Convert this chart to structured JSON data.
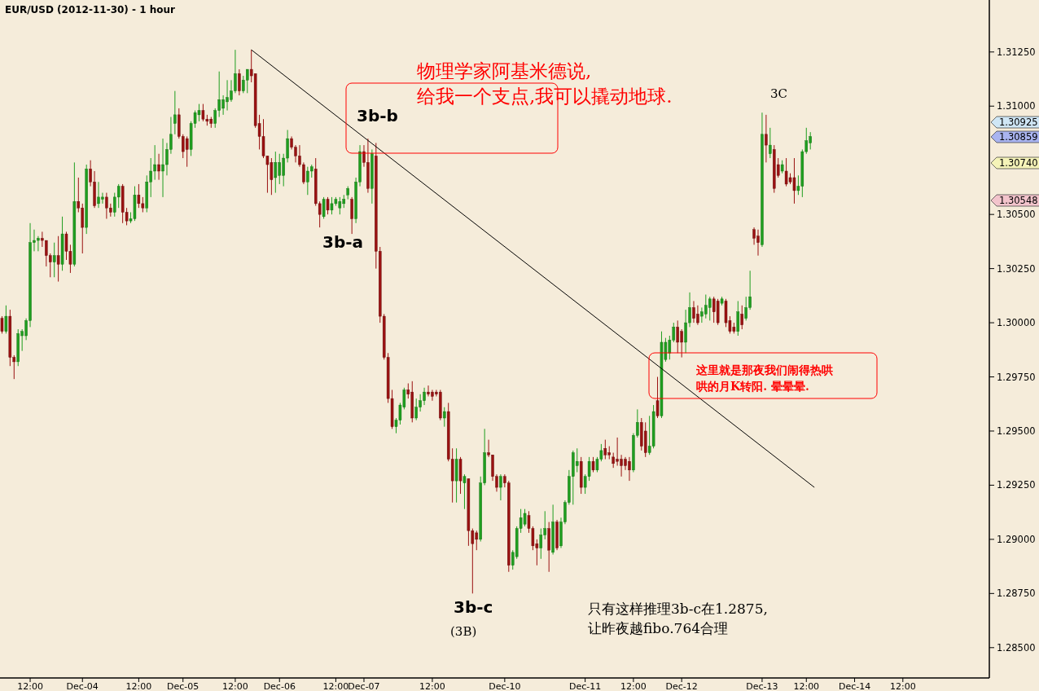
{
  "chart_data": {
    "type": "candlestick",
    "title": "EUR/USD (2012-11-30) - 1 hour",
    "categories": [
      null,
      null,
      null,
      null,
      null,
      null,
      null,
      "12:00",
      null,
      null,
      null,
      null,
      null,
      null,
      null,
      null,
      null,
      null,
      null,
      null,
      "Dec-04",
      null,
      null,
      null,
      null,
      null,
      null,
      null,
      null,
      null,
      null,
      null,
      null,
      null,
      "12:00",
      null,
      null,
      null,
      null,
      null,
      null,
      null,
      null,
      null,
      null,
      "Dec-05",
      null,
      null,
      null,
      null,
      null,
      null,
      null,
      null,
      null,
      null,
      null,
      null,
      "12:00",
      null,
      null,
      null,
      null,
      null,
      null,
      null,
      null,
      null,
      null,
      "Dec-06",
      null,
      null,
      null,
      null,
      null,
      null,
      null,
      null,
      null,
      null,
      null,
      null,
      null,
      "12:00",
      null,
      null,
      null,
      null,
      null,
      null,
      "Dec-07",
      null,
      null,
      null,
      null,
      null,
      null,
      null,
      null,
      null,
      null,
      null,
      null,
      null,
      null,
      null,
      null,
      "12:00",
      null,
      null,
      null,
      null,
      null,
      null,
      null,
      null,
      null,
      null,
      null,
      null,
      null,
      null,
      null,
      null,
      null,
      "Dec-10",
      null,
      null,
      null,
      null,
      null,
      null,
      null,
      null,
      null,
      null,
      null,
      null,
      null,
      null,
      null,
      null,
      null,
      null,
      null,
      "Dec-11",
      null,
      null,
      null,
      null,
      null,
      null,
      null,
      null,
      null,
      null,
      null,
      "12:00",
      null,
      null,
      null,
      null,
      null,
      null,
      null,
      null,
      null,
      null,
      null,
      "Dec-12",
      null,
      null,
      null,
      null,
      null,
      null,
      null,
      null,
      null,
      null,
      null,
      null,
      null,
      null,
      null,
      null,
      null,
      null,
      null,
      "Dec-13",
      null,
      null,
      null,
      null,
      null,
      null,
      null,
      null,
      null,
      null,
      "12:00",
      null,
      null,
      null,
      null,
      null,
      null,
      null,
      null,
      null,
      null,
      null,
      "Dec-14",
      null,
      null,
      null,
      null,
      null,
      null,
      null,
      null,
      null,
      null,
      null,
      "12:00",
      null,
      null,
      null,
      null,
      null,
      null,
      null,
      null,
      null,
      null,
      null,
      null,
      null,
      null,
      null,
      null,
      null,
      null,
      null,
      null,
      null
    ],
    "ohlc": [
      [
        1.3002,
        1.3003,
        1.2995,
        1.2996
      ],
      [
        1.2996,
        1.3008,
        1.2995,
        1.3003
      ],
      [
        1.3003,
        1.3006,
        1.298,
        1.2984
      ],
      [
        1.2984,
        1.2985,
        1.2974,
        1.2982
      ],
      [
        1.2982,
        1.2997,
        1.298,
        1.2995
      ],
      [
        1.2994,
        1.2997,
        1.2987,
        1.2996
      ],
      [
        1.2994,
        1.3002,
        1.2992,
        1.3001
      ],
      [
        1.3001,
        1.3046,
        1.2998,
        1.3037
      ],
      [
        1.3037,
        1.3043,
        1.3033,
        1.3038
      ],
      [
        1.3038,
        1.304,
        1.3033,
        1.3039
      ],
      [
        1.3039,
        1.3042,
        1.3035,
        1.3038
      ],
      [
        1.3038,
        1.3038,
        1.3026,
        1.3031
      ],
      [
        1.3031,
        1.3032,
        1.3021,
        1.3028
      ],
      [
        1.3028,
        1.3037,
        1.3021,
        1.3031
      ],
      [
        1.3031,
        1.304,
        1.3019,
        1.3027
      ],
      [
        1.3027,
        1.3049,
        1.3024,
        1.3041
      ],
      [
        1.3041,
        1.3042,
        1.3029,
        1.3033
      ],
      [
        1.3033,
        1.3036,
        1.3023,
        1.3027
      ],
      [
        1.3027,
        1.3074,
        1.3026,
        1.3056
      ],
      [
        1.3056,
        1.3067,
        1.3051,
        1.3053
      ],
      [
        1.3053,
        1.3055,
        1.3032,
        1.3044
      ],
      [
        1.3044,
        1.3073,
        1.3041,
        1.3071
      ],
      [
        1.3071,
        1.3075,
        1.3063,
        1.3065
      ],
      [
        1.3065,
        1.307,
        1.3053,
        1.3054
      ],
      [
        1.3055,
        1.3065,
        1.3053,
        1.3058
      ],
      [
        1.3057,
        1.306,
        1.3055,
        1.3058
      ],
      [
        1.3058,
        1.306,
        1.3048,
        1.3053
      ],
      [
        1.3053,
        1.3055,
        1.3049,
        1.3051
      ],
      [
        1.3051,
        1.306,
        1.3049,
        1.3058
      ],
      [
        1.3058,
        1.3064,
        1.3053,
        1.3063
      ],
      [
        1.3063,
        1.3064,
        1.3046,
        1.3051
      ],
      [
        1.3051,
        1.3053,
        1.3045,
        1.3047
      ],
      [
        1.3047,
        1.3051,
        1.3046,
        1.3048
      ],
      [
        1.3048,
        1.3063,
        1.3047,
        1.3059
      ],
      [
        1.3059,
        1.3064,
        1.3053,
        1.3055
      ],
      [
        1.3055,
        1.3058,
        1.3051,
        1.3053
      ],
      [
        1.3053,
        1.3068,
        1.3051,
        1.3065
      ],
      [
        1.3065,
        1.3076,
        1.3058,
        1.307
      ],
      [
        1.307,
        1.3082,
        1.3066,
        1.3073
      ],
      [
        1.3073,
        1.3078,
        1.3066,
        1.307
      ],
      [
        1.307,
        1.3085,
        1.3058,
        1.3073
      ],
      [
        1.3073,
        1.3083,
        1.3068,
        1.308
      ],
      [
        1.308,
        1.3095,
        1.3078,
        1.3087
      ],
      [
        1.3092,
        1.3107,
        1.3087,
        1.3096
      ],
      [
        1.3096,
        1.3099,
        1.3085,
        1.3086
      ],
      [
        1.3086,
        1.3087,
        1.3076,
        1.3079
      ],
      [
        1.3085,
        1.3086,
        1.3072,
        1.308
      ],
      [
        1.308,
        1.3093,
        1.3077,
        1.3092
      ],
      [
        1.3092,
        1.3098,
        1.309,
        1.3097
      ],
      [
        1.3096,
        1.3101,
        1.3093,
        1.3098
      ],
      [
        1.3098,
        1.3101,
        1.3093,
        1.3094
      ],
      [
        1.3094,
        1.3096,
        1.3091,
        1.3093
      ],
      [
        1.3094,
        1.3095,
        1.309,
        1.3092
      ],
      [
        1.3092,
        1.3099,
        1.309,
        1.3098
      ],
      [
        1.3098,
        1.3116,
        1.3095,
        1.3103
      ],
      [
        1.3099,
        1.3105,
        1.3096,
        1.3103
      ],
      [
        1.3102,
        1.3112,
        1.3098,
        1.3104
      ],
      [
        1.3103,
        1.3112,
        1.3102,
        1.3107
      ],
      [
        1.3107,
        1.3126,
        1.3106,
        1.3115
      ],
      [
        1.3115,
        1.3117,
        1.3105,
        1.3107
      ],
      [
        1.3107,
        1.3114,
        1.3106,
        1.3112
      ],
      [
        1.3112,
        1.3117,
        1.3106,
        1.3117
      ],
      [
        1.3117,
        1.3126,
        1.3111,
        1.3114
      ],
      [
        1.3115,
        1.3115,
        1.309,
        1.3091
      ],
      [
        1.3092,
        1.3096,
        1.308,
        1.3086
      ],
      [
        1.3086,
        1.3094,
        1.3076,
        1.3077
      ],
      [
        1.3077,
        1.3077,
        1.306,
        1.3073
      ],
      [
        1.3074,
        1.3076,
        1.3059,
        1.3066
      ],
      [
        1.3067,
        1.3079,
        1.306,
        1.3074
      ],
      [
        1.3068,
        1.3078,
        1.3064,
        1.3074
      ],
      [
        1.3068,
        1.3078,
        1.3063,
        1.3076
      ],
      [
        1.3076,
        1.3089,
        1.3074,
        1.3085
      ],
      [
        1.3085,
        1.3086,
        1.308,
        1.3081
      ],
      [
        1.3081,
        1.3082,
        1.3074,
        1.3077
      ],
      [
        1.3077,
        1.3082,
        1.3072,
        1.3073
      ],
      [
        1.3073,
        1.3074,
        1.3064,
        1.3065
      ],
      [
        1.3065,
        1.3072,
        1.3059,
        1.307
      ],
      [
        1.307,
        1.3073,
        1.3067,
        1.3072
      ],
      [
        1.3071,
        1.3076,
        1.3054,
        1.3055
      ],
      [
        1.3055,
        1.3056,
        1.3044,
        1.305
      ],
      [
        1.3049,
        1.3058,
        1.3048,
        1.3057
      ],
      [
        1.3057,
        1.3058,
        1.305,
        1.3052
      ],
      [
        1.3052,
        1.3058,
        1.305,
        1.3055
      ],
      [
        1.3055,
        1.3058,
        1.3054,
        1.3057
      ],
      [
        1.3053,
        1.3058,
        1.305,
        1.3056
      ],
      [
        1.3055,
        1.3059,
        1.3053,
        1.3057
      ],
      [
        1.3059,
        1.3063,
        1.3057,
        1.3062
      ],
      [
        1.3057,
        1.3058,
        1.3041,
        1.3048
      ],
      [
        1.3048,
        1.3067,
        1.3046,
        1.3065
      ],
      [
        1.3065,
        1.3082,
        1.3063,
        1.3079
      ],
      [
        1.3079,
        1.3082,
        1.3072,
        1.3074
      ],
      [
        1.3074,
        1.3085,
        1.306,
        1.3062
      ],
      [
        1.3062,
        1.308,
        1.3055,
        1.3078
      ],
      [
        1.3077,
        1.3083,
        1.3025,
        1.3033
      ],
      [
        1.3033,
        1.3035,
        1.3,
        1.3003
      ],
      [
        1.3003,
        1.3004,
        1.2983,
        1.2984
      ],
      [
        1.2984,
        1.2986,
        1.2963,
        1.2965
      ],
      [
        1.2965,
        1.2969,
        1.2951,
        1.2952
      ],
      [
        1.2952,
        1.2956,
        1.2949,
        1.2955
      ],
      [
        1.2955,
        1.2963,
        1.2953,
        1.2962
      ],
      [
        1.2961,
        1.297,
        1.296,
        1.2969
      ],
      [
        1.2969,
        1.2972,
        1.2965,
        1.2967
      ],
      [
        1.2968,
        1.2973,
        1.2954,
        1.2956
      ],
      [
        1.2956,
        1.2965,
        1.2955,
        1.2961
      ],
      [
        1.2961,
        1.2967,
        1.2959,
        1.2964
      ],
      [
        1.2964,
        1.297,
        1.2962,
        1.2968
      ],
      [
        1.2968,
        1.2971,
        1.2966,
        1.2967
      ],
      [
        1.2968,
        1.2969,
        1.2964,
        1.2966
      ],
      [
        1.2968,
        1.2969,
        1.2966,
        1.2967
      ],
      [
        1.2968,
        1.2969,
        1.2955,
        1.2956
      ],
      [
        1.2956,
        1.2961,
        1.2952,
        1.2959
      ],
      [
        1.2959,
        1.2963,
        1.2936,
        1.2937
      ],
      [
        1.2937,
        1.2942,
        1.2917,
        1.2927
      ],
      [
        1.2927,
        1.2942,
        1.2917,
        1.2937
      ],
      [
        1.2937,
        1.2938,
        1.2921,
        1.2927
      ],
      [
        1.2926,
        1.293,
        1.2914,
        1.2929
      ],
      [
        1.2928,
        1.2928,
        1.2897,
        1.2904
      ],
      [
        1.2904,
        1.2905,
        1.2875,
        1.2898
      ],
      [
        1.2903,
        1.2904,
        1.2895,
        1.29
      ],
      [
        1.29,
        1.2929,
        1.2899,
        1.2926
      ],
      [
        1.2926,
        1.2951,
        1.2925,
        1.294
      ],
      [
        1.294,
        1.2946,
        1.2938,
        1.2939
      ],
      [
        1.2939,
        1.2939,
        1.2927,
        1.2929
      ],
      [
        1.2929,
        1.293,
        1.2922,
        1.2924
      ],
      [
        1.2924,
        1.293,
        1.2918,
        1.2929
      ],
      [
        1.2929,
        1.293,
        1.2924,
        1.2926
      ],
      [
        1.2926,
        1.2927,
        1.2885,
        1.2888
      ],
      [
        1.2888,
        1.2895,
        1.2886,
        1.2894
      ],
      [
        1.2892,
        1.2906,
        1.2891,
        1.2905
      ],
      [
        1.2905,
        1.2914,
        1.2903,
        1.291
      ],
      [
        1.2907,
        1.2914,
        1.2906,
        1.2912
      ],
      [
        1.2911,
        1.2913,
        1.2903,
        1.2905
      ],
      [
        1.2905,
        1.2906,
        1.2895,
        1.2897
      ],
      [
        1.2898,
        1.29,
        1.2888,
        1.2896
      ],
      [
        1.2896,
        1.2905,
        1.2891,
        1.2902
      ],
      [
        1.2902,
        1.2913,
        1.29,
        1.2905
      ],
      [
        1.2905,
        1.2908,
        1.2885,
        1.2895
      ],
      [
        1.2894,
        1.2916,
        1.2893,
        1.2908
      ],
      [
        1.2908,
        1.2909,
        1.2895,
        1.2896
      ],
      [
        1.2897,
        1.291,
        1.2896,
        1.2908
      ],
      [
        1.2908,
        1.2918,
        1.2907,
        1.2917
      ],
      [
        1.2917,
        1.2932,
        1.2916,
        1.2929
      ],
      [
        1.2929,
        1.2941,
        1.2916,
        1.294
      ],
      [
        1.2934,
        1.2942,
        1.2931,
        1.2936
      ],
      [
        1.2936,
        1.2938,
        1.2921,
        1.2924
      ],
      [
        1.2924,
        1.293,
        1.2921,
        1.2929
      ],
      [
        1.2929,
        1.2938,
        1.2927,
        1.2936
      ],
      [
        1.2936,
        1.2938,
        1.2931,
        1.2932
      ],
      [
        1.2932,
        1.2938,
        1.2931,
        1.2937
      ],
      [
        1.2937,
        1.2944,
        1.2936,
        1.2941
      ],
      [
        1.2942,
        1.2946,
        1.2937,
        1.2939
      ],
      [
        1.294,
        1.2943,
        1.2937,
        1.2939
      ],
      [
        1.2938,
        1.294,
        1.2933,
        1.2935
      ],
      [
        1.2937,
        1.2947,
        1.2934,
        1.2936
      ],
      [
        1.2937,
        1.2939,
        1.2929,
        1.2934
      ],
      [
        1.2937,
        1.2938,
        1.2932,
        1.2934
      ],
      [
        1.2936,
        1.2938,
        1.2927,
        1.2932
      ],
      [
        1.2932,
        1.2949,
        1.2931,
        1.2948
      ],
      [
        1.2948,
        1.296,
        1.2947,
        1.2954
      ],
      [
        1.2954,
        1.2956,
        1.2941,
        1.2943
      ],
      [
        1.295,
        1.2954,
        1.2938,
        1.294
      ],
      [
        1.294,
        1.2957,
        1.2939,
        1.2943
      ],
      [
        1.2943,
        1.2962,
        1.2942,
        1.2959
      ],
      [
        1.2964,
        1.2975,
        1.2956,
        1.2957
      ],
      [
        1.2957,
        1.2996,
        1.2956,
        1.2991
      ],
      [
        1.2983,
        1.2993,
        1.2982,
        1.2991
      ],
      [
        1.2986,
        1.2994,
        1.2983,
        1.2992
      ],
      [
        1.2992,
        1.3,
        1.2991,
        1.2998
      ],
      [
        1.2998,
        1.3001,
        1.2986,
        1.2991
      ],
      [
        1.2996,
        1.2997,
        1.2984,
        1.2991
      ],
      [
        1.2991,
        1.3006,
        1.2986,
        1.3
      ],
      [
        1.3,
        1.3014,
        1.2998,
        1.3007
      ],
      [
        1.3007,
        1.301,
        1.3,
        1.3002
      ],
      [
        1.3004,
        1.3008,
        1.2999,
        1.3
      ],
      [
        1.3003,
        1.3007,
        1.3,
        1.3005
      ],
      [
        1.3004,
        1.3013,
        1.3002,
        1.3008
      ],
      [
        1.3007,
        1.3012,
        1.3001,
        1.3011
      ],
      [
        1.3011,
        1.3012,
        1.3,
        1.3005
      ],
      [
        1.301,
        1.3011,
        1.2999,
        1.3
      ],
      [
        1.3009,
        1.3012,
        1.3008,
        1.3011
      ],
      [
        1.301,
        1.3011,
        1.2998,
        1.3
      ],
      [
        1.3001,
        1.3003,
        1.2995,
        1.2996
      ],
      [
        1.2998,
        1.3,
        1.2995,
        1.2996
      ],
      [
        1.2996,
        1.301,
        1.2994,
        1.3005
      ],
      [
        1.3004,
        1.3008,
        1.2997,
        1.2999
      ],
      [
        1.3002,
        1.3012,
        1.3001,
        1.3007
      ],
      [
        1.3007,
        1.3024,
        1.3006,
        1.3012
      ],
      [
        1.3043,
        1.3044,
        1.3036,
        1.3039
      ],
      [
        1.304,
        1.3043,
        1.3031,
        1.3037
      ],
      [
        1.3036,
        1.3097,
        1.3035,
        1.3087
      ],
      [
        1.3087,
        1.3096,
        1.3074,
        1.3082
      ],
      [
        1.3078,
        1.309,
        1.3076,
        1.3082
      ],
      [
        1.308,
        1.3082,
        1.306,
        1.3062
      ],
      [
        1.3073,
        1.3076,
        1.3067,
        1.3068
      ],
      [
        1.307,
        1.3075,
        1.3069,
        1.3073
      ],
      [
        1.307,
        1.3076,
        1.3063,
        1.3064
      ],
      [
        1.3067,
        1.3069,
        1.3064,
        1.3065
      ],
      [
        1.3067,
        1.3076,
        1.3055,
        1.3061
      ],
      [
        1.3061,
        1.3068,
        1.3059,
        1.3063
      ],
      [
        1.3063,
        1.308,
        1.3058,
        1.3079
      ],
      [
        1.3079,
        1.309,
        1.3078,
        1.3084
      ],
      [
        1.3083,
        1.3088,
        1.308,
        1.3086
      ],
      null,
      null,
      null,
      null,
      null,
      null,
      null,
      null,
      null,
      null,
      null,
      null,
      null,
      null,
      null,
      null,
      null,
      null,
      null,
      null,
      null,
      null,
      null,
      null,
      null,
      null,
      null,
      null,
      null,
      null,
      null,
      null,
      null,
      null,
      null,
      null,
      null,
      null,
      null,
      null,
      null,
      null,
      null,
      null
    ],
    "series": [
      {
        "type": "line",
        "color": "#000000",
        "values": [
          null,
          null,
          null,
          null,
          null,
          null,
          null,
          null,
          null,
          null,
          null,
          null,
          null,
          null,
          null,
          null,
          null,
          null,
          null,
          null,
          null,
          null,
          null,
          null,
          null,
          null,
          null,
          null,
          null,
          null,
          null,
          null,
          null,
          null,
          null,
          null,
          null,
          null,
          null,
          null,
          null,
          null,
          null,
          null,
          null,
          null,
          null,
          null,
          null,
          null,
          null,
          null,
          null,
          null,
          null,
          null,
          null,
          null,
          null,
          null,
          null,
          null,
          1.3126,
          null,
          null,
          null,
          null,
          null,
          null,
          null,
          null,
          null,
          null,
          null,
          null,
          null,
          null,
          null,
          null,
          null,
          null,
          null,
          null,
          null,
          null,
          null,
          null,
          null,
          null,
          null,
          null,
          null,
          null,
          null,
          null,
          null,
          null,
          null,
          null,
          null,
          null,
          null,
          null,
          null,
          null,
          null,
          null,
          null,
          null,
          null,
          null,
          null,
          null,
          null,
          null,
          null,
          null,
          null,
          null,
          null,
          null,
          null,
          null,
          null,
          null,
          null,
          null,
          null,
          null,
          null,
          null,
          null,
          null,
          null,
          null,
          null,
          null,
          null,
          null,
          null,
          null,
          null,
          null,
          null,
          null,
          null,
          null,
          null,
          null,
          null,
          null,
          null,
          null,
          null,
          null,
          null,
          null,
          null,
          null,
          null,
          null,
          null,
          null,
          null,
          null,
          null,
          null,
          null,
          null,
          null,
          null,
          null,
          null,
          null,
          null,
          null,
          null,
          null,
          null,
          null,
          null,
          null,
          null,
          null,
          null,
          null,
          null,
          null,
          null,
          null,
          null,
          null,
          null,
          null,
          null,
          null,
          null,
          null,
          null,
          null,
          null,
          null,
          1.2924,
          null,
          null,
          null,
          null,
          null,
          null,
          null,
          null,
          null,
          null,
          null,
          null,
          null,
          null,
          null,
          null,
          null,
          null,
          null,
          null,
          null,
          null,
          null,
          null,
          null,
          null,
          null,
          null,
          null,
          null,
          null,
          null,
          null,
          null,
          null,
          null,
          null,
          null,
          null,
          null,
          null,
          null,
          null
        ]
      }
    ],
    "ylim": [
      1.2836,
      1.3149
    ],
    "yticks": [
      {
        "value": 1.285,
        "label": "1.28500"
      },
      {
        "value": 1.2875,
        "label": "1.28750"
      },
      {
        "value": 1.29,
        "label": "1.29000"
      },
      {
        "value": 1.2925,
        "label": "1.29250"
      },
      {
        "value": 1.295,
        "label": "1.29500"
      },
      {
        "value": 1.2975,
        "label": "1.29750"
      },
      {
        "value": 1.3,
        "label": "1.30000"
      },
      {
        "value": 1.3025,
        "label": "1.30250"
      },
      {
        "value": 1.305,
        "label": "1.30500"
      },
      {
        "value": 1.31,
        "label": "1.31000"
      },
      {
        "value": 1.3125,
        "label": "1.31250"
      }
    ],
    "annotations": [
      "3b-b",
      "3b-a",
      "3b-c",
      "(3B)",
      "3C",
      "物理学家阿基米德说,",
      "给我一个支点,我可以撬动地球.",
      "这里就是那夜我们闹得热哄",
      "哄的月K转阳. 晕晕晕.",
      "只有这样推理3b-c在1.2875,",
      "让昨夜越fibo.764合理",
      "1.30925",
      "1.30859",
      "1.30740",
      "1.30548"
    ]
  }
}
